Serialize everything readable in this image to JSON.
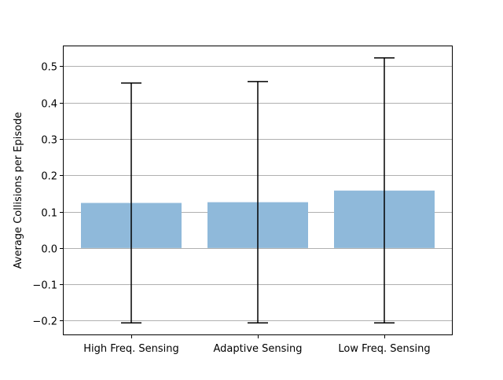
{
  "chart_data": {
    "type": "bar",
    "title": "",
    "xlabel": "",
    "ylabel": "Average Collisions per Episode",
    "categories": [
      "High Freq. Sensing",
      "Adaptive Sensing",
      "Low Freq. Sensing"
    ],
    "values": [
      0.124,
      0.126,
      0.158
    ],
    "error_bars": {
      "lower": [
        -0.206,
        -0.206,
        -0.206
      ],
      "upper": [
        0.454,
        0.458,
        0.523
      ]
    },
    "ylim": [
      -0.24,
      0.557
    ],
    "yticks": [
      -0.2,
      -0.1,
      0.0,
      0.1,
      0.2,
      0.3,
      0.4,
      0.5
    ],
    "ytick_labels": [
      "−0.2",
      "−0.1",
      "0.0",
      "0.1",
      "0.2",
      "0.3",
      "0.4",
      "0.5"
    ],
    "grid": "y",
    "bar_color": "#8fb9da",
    "error_color": "#000000",
    "grid_color": "#b0b0b0"
  }
}
